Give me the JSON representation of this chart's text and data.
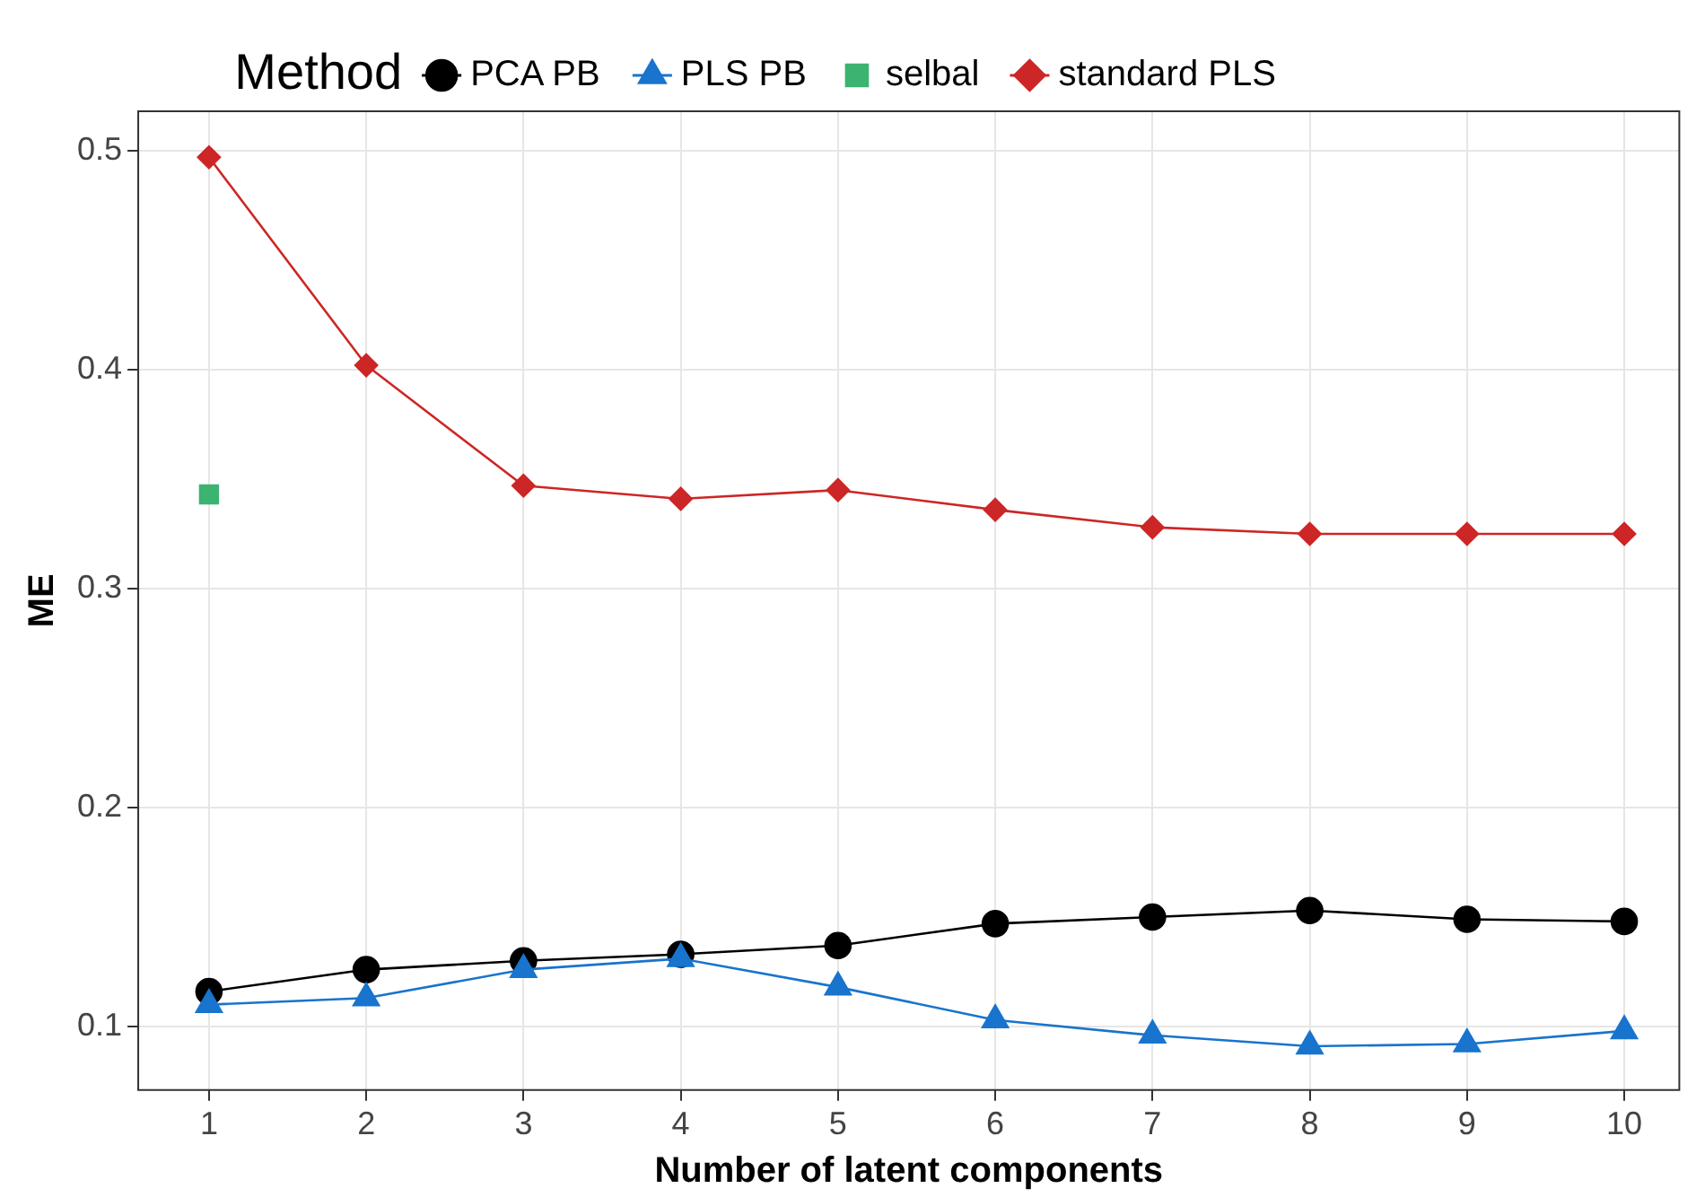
{
  "chart_data": {
    "type": "line",
    "xlabel": "Number of latent components",
    "ylabel": "ME",
    "legend_title": "Method",
    "legend": "top",
    "grid": true,
    "x": [
      1,
      2,
      3,
      4,
      5,
      6,
      7,
      8,
      9,
      10
    ],
    "xlim": [
      0.55,
      10.35
    ],
    "xticks": [
      1,
      2,
      3,
      4,
      5,
      6,
      7,
      8,
      9,
      10
    ],
    "ylim": [
      0.071,
      0.518
    ],
    "yticks": [
      0.1,
      0.2,
      0.3,
      0.4,
      0.5
    ],
    "series": [
      {
        "name": "PCA PB",
        "color": "#000000",
        "marker": "circle",
        "values": [
          0.116,
          0.126,
          0.13,
          0.133,
          0.137,
          0.147,
          0.15,
          0.153,
          0.149,
          0.148
        ]
      },
      {
        "name": "PLS PB",
        "color": "#1874cd",
        "marker": "triangle",
        "values": [
          0.11,
          0.113,
          0.126,
          0.131,
          0.118,
          0.103,
          0.096,
          0.091,
          0.092,
          0.098
        ]
      },
      {
        "name": "selbal",
        "type": "scatter",
        "color": "#3cb371",
        "marker": "square",
        "x": [
          1
        ],
        "values": [
          0.343
        ]
      },
      {
        "name": "standard PLS",
        "color": "#cd2626",
        "marker": "diamond",
        "values": [
          0.497,
          0.402,
          0.347,
          0.341,
          0.345,
          0.336,
          0.328,
          0.325,
          0.325,
          0.325
        ]
      }
    ]
  }
}
